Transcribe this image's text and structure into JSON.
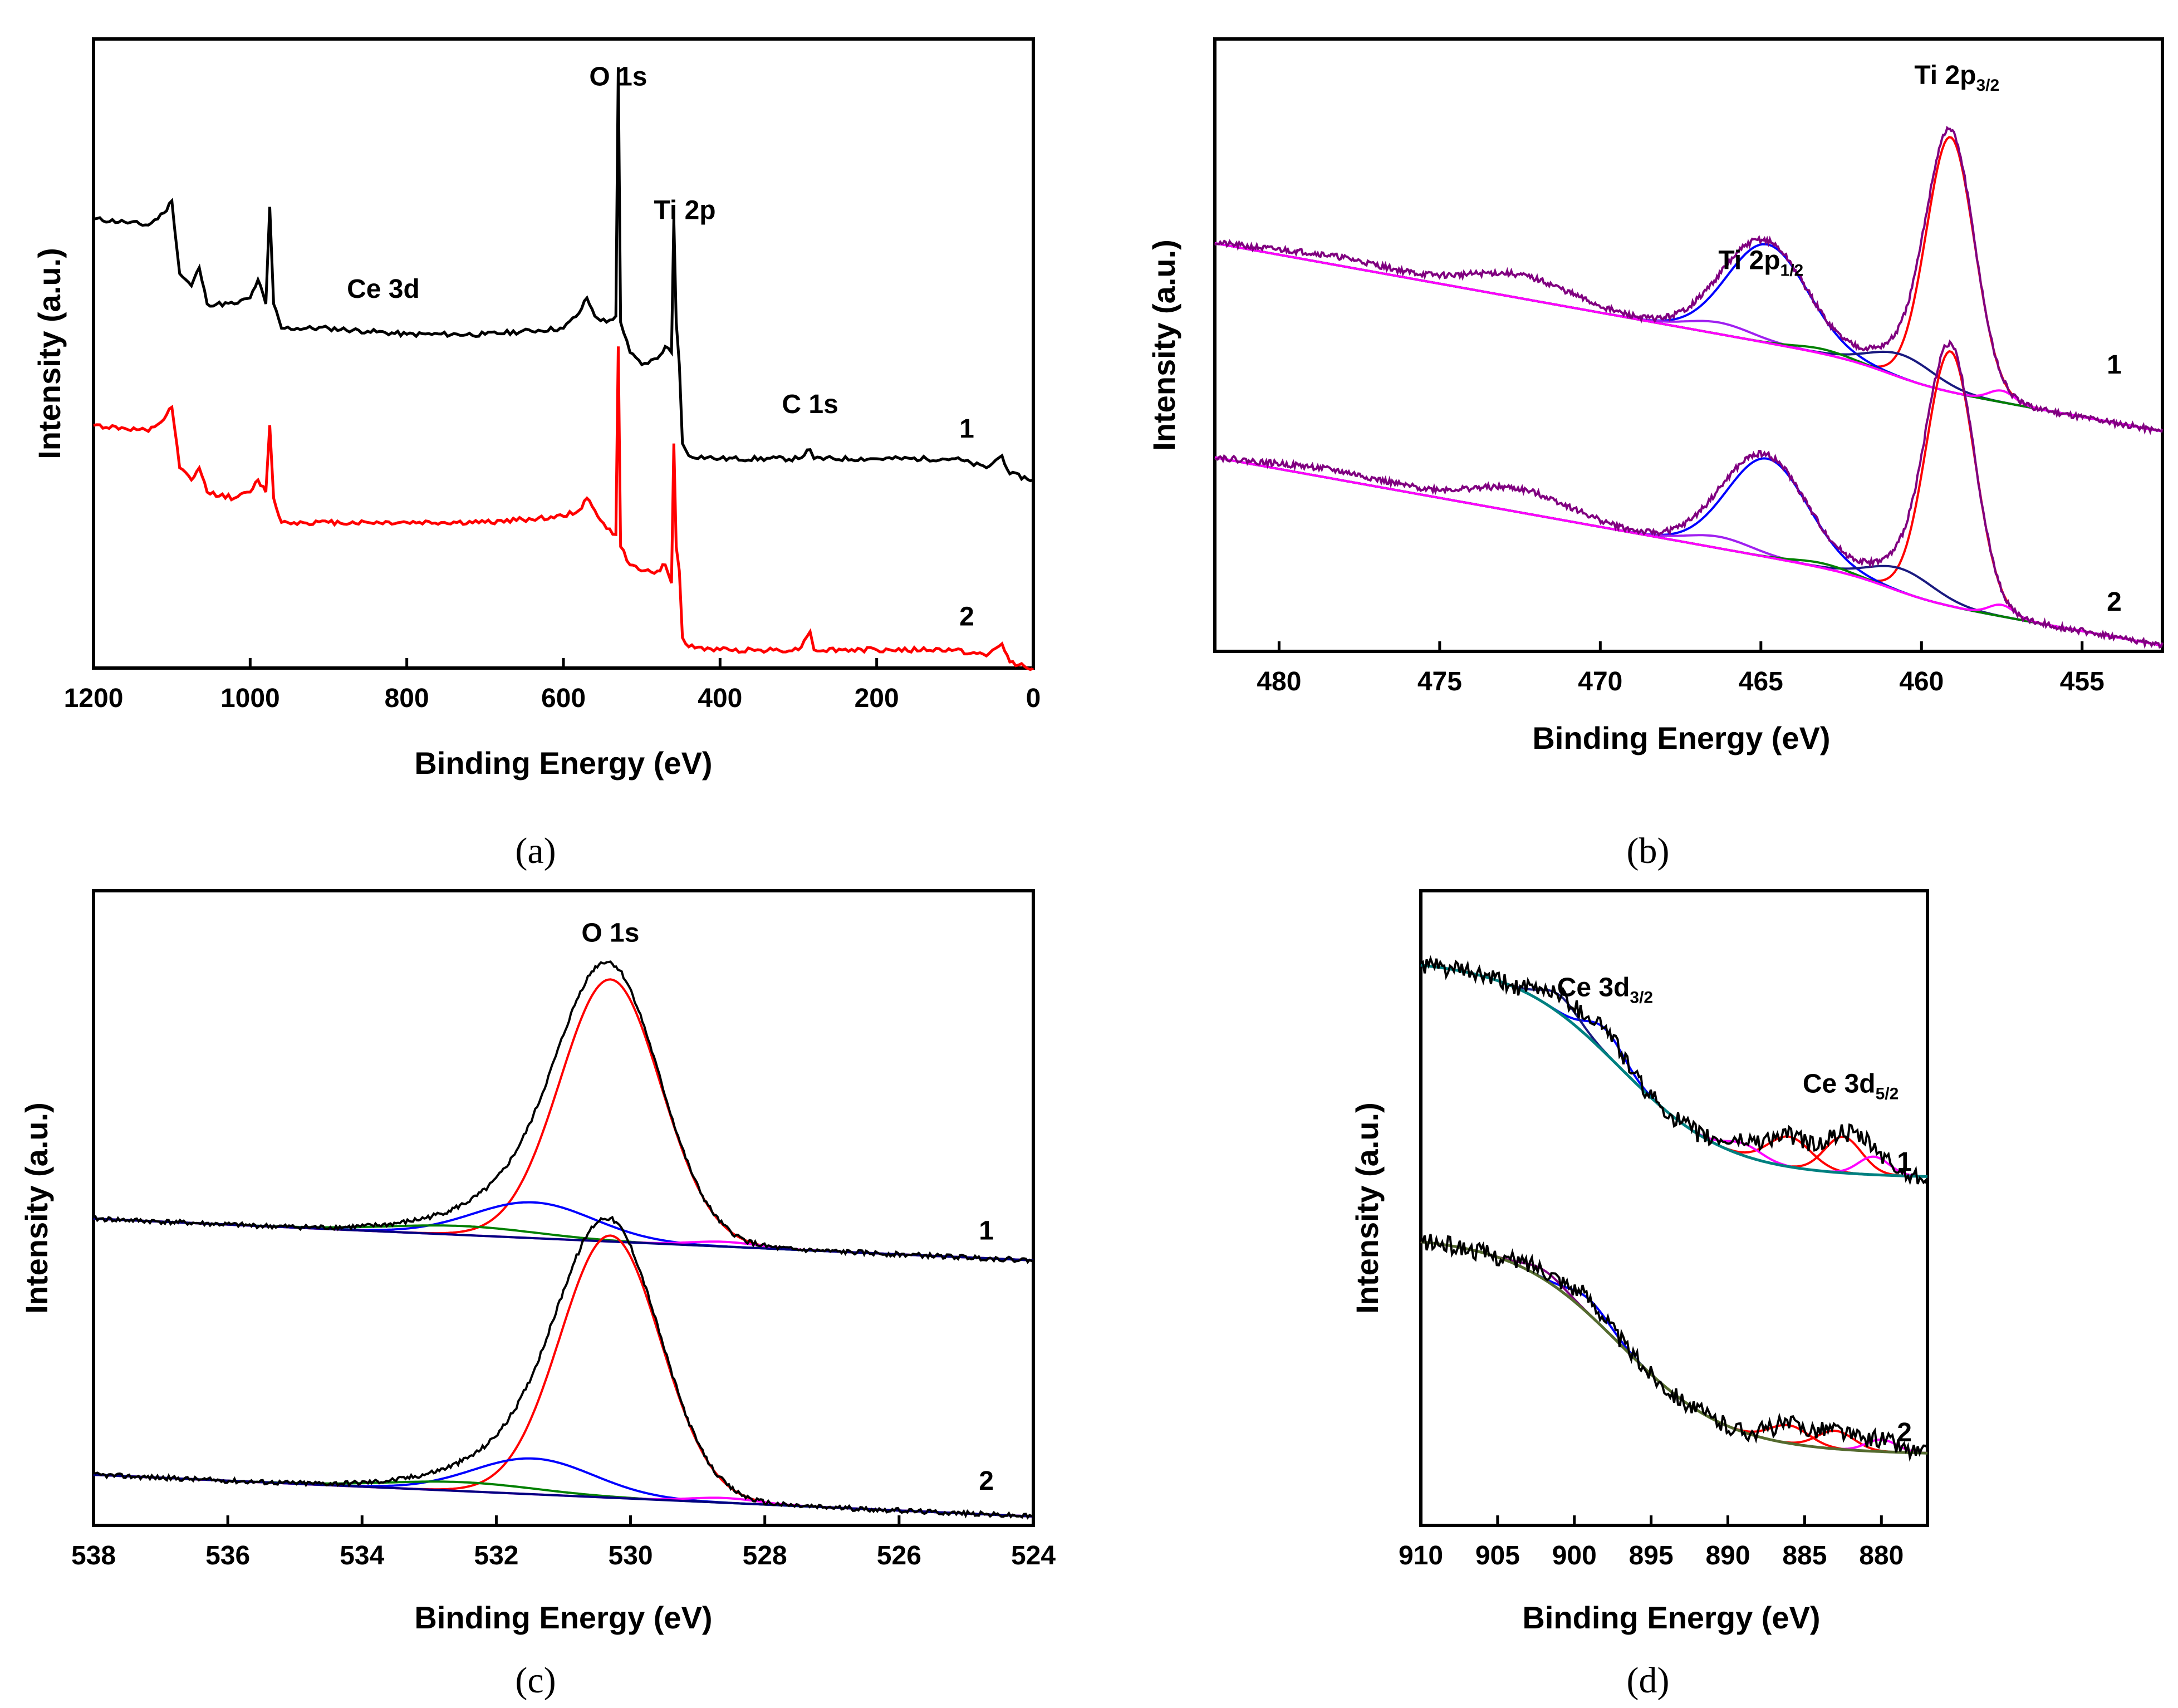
{
  "chart_data": [
    {
      "id": "a",
      "type": "line",
      "caption": "(a)",
      "xlabel": "Binding Energy (eV)",
      "ylabel": "Intensity (a.u.)",
      "xlim": [
        1200,
        0
      ],
      "ylim": [
        0,
        1
      ],
      "x_ticks": [
        1200,
        1000,
        800,
        600,
        400,
        200,
        0
      ],
      "annotations": [
        {
          "text": "O 1s",
          "x": 530,
          "y": 0.96
        },
        {
          "text": "Ti 2p",
          "x": 445,
          "y": 0.74
        },
        {
          "text": "Ce 3d",
          "x": 830,
          "y": 0.61
        },
        {
          "text": "C 1s",
          "x": 285,
          "y": 0.42
        }
      ],
      "curve_labels": [
        {
          "text": "1",
          "x": 85,
          "y": 0.38
        },
        {
          "text": "2",
          "x": 85,
          "y": 0.07
        }
      ],
      "series": [
        {
          "name": "1",
          "color": "#000000",
          "baseline": 0.36,
          "points": [
            [
              1200,
              0.74
            ],
            [
              1160,
              0.735
            ],
            [
              1130,
              0.73
            ],
            [
              1110,
              0.75
            ],
            [
              1100,
              0.77
            ],
            [
              1090,
              0.65
            ],
            [
              1075,
              0.63
            ],
            [
              1065,
              0.66
            ],
            [
              1055,
              0.6
            ],
            [
              1020,
              0.6
            ],
            [
              1000,
              0.61
            ],
            [
              990,
              0.64
            ],
            [
              980,
              0.6
            ],
            [
              975,
              0.76
            ],
            [
              970,
              0.6
            ],
            [
              960,
              0.56
            ],
            [
              900,
              0.56
            ],
            [
              850,
              0.555
            ],
            [
              800,
              0.55
            ],
            [
              700,
              0.55
            ],
            [
              600,
              0.56
            ],
            [
              580,
              0.585
            ],
            [
              570,
              0.61
            ],
            [
              560,
              0.58
            ],
            [
              545,
              0.57
            ],
            [
              533,
              0.58
            ],
            [
              530,
              0.99
            ],
            [
              527,
              0.57
            ],
            [
              515,
              0.52
            ],
            [
              500,
              0.5
            ],
            [
              480,
              0.51
            ],
            [
              470,
              0.53
            ],
            [
              462,
              0.52
            ],
            [
              459,
              0.74
            ],
            [
              456,
              0.57
            ],
            [
              452,
              0.5
            ],
            [
              448,
              0.37
            ],
            [
              440,
              0.35
            ],
            [
              400,
              0.345
            ],
            [
              300,
              0.345
            ],
            [
              285,
              0.36
            ],
            [
              280,
              0.345
            ],
            [
              200,
              0.345
            ],
            [
              100,
              0.345
            ],
            [
              60,
              0.33
            ],
            [
              40,
              0.35
            ],
            [
              30,
              0.32
            ],
            [
              0,
              0.31
            ]
          ]
        },
        {
          "name": "2",
          "color": "#ff0000",
          "baseline": 0.05,
          "points": [
            [
              1200,
              0.4
            ],
            [
              1160,
              0.395
            ],
            [
              1130,
              0.39
            ],
            [
              1110,
              0.41
            ],
            [
              1100,
              0.43
            ],
            [
              1090,
              0.33
            ],
            [
              1075,
              0.31
            ],
            [
              1065,
              0.33
            ],
            [
              1055,
              0.29
            ],
            [
              1020,
              0.28
            ],
            [
              1000,
              0.29
            ],
            [
              990,
              0.31
            ],
            [
              980,
              0.29
            ],
            [
              975,
              0.4
            ],
            [
              970,
              0.28
            ],
            [
              960,
              0.24
            ],
            [
              900,
              0.24
            ],
            [
              850,
              0.24
            ],
            [
              800,
              0.24
            ],
            [
              700,
              0.24
            ],
            [
              600,
              0.25
            ],
            [
              580,
              0.26
            ],
            [
              570,
              0.28
            ],
            [
              560,
              0.26
            ],
            [
              545,
              0.23
            ],
            [
              533,
              0.22
            ],
            [
              530,
              0.53
            ],
            [
              527,
              0.2
            ],
            [
              515,
              0.17
            ],
            [
              500,
              0.16
            ],
            [
              480,
              0.16
            ],
            [
              470,
              0.17
            ],
            [
              462,
              0.14
            ],
            [
              459,
              0.37
            ],
            [
              456,
              0.2
            ],
            [
              452,
              0.16
            ],
            [
              448,
              0.05
            ],
            [
              440,
              0.035
            ],
            [
              400,
              0.03
            ],
            [
              300,
              0.03
            ],
            [
              285,
              0.06
            ],
            [
              280,
              0.03
            ],
            [
              200,
              0.03
            ],
            [
              100,
              0.03
            ],
            [
              60,
              0.02
            ],
            [
              40,
              0.04
            ],
            [
              30,
              0.01
            ],
            [
              0,
              0.0
            ]
          ]
        }
      ]
    },
    {
      "id": "b",
      "type": "line",
      "caption": "(b)",
      "xlabel": "Binding Energy (eV)",
      "ylabel": "Intensity (a.u.)",
      "xlim": [
        482,
        452.5
      ],
      "ylim": [
        0,
        1
      ],
      "x_ticks": [
        480,
        475,
        470,
        465,
        460,
        455
      ],
      "annotations": [
        {
          "text": "Ti 2p",
          "sub": "3/2",
          "x": 458.9,
          "y": 0.98
        },
        {
          "text": "Ti 2p",
          "sub": "1/2",
          "x": 465,
          "y": 0.66
        }
      ],
      "curve_labels": [
        {
          "text": "1",
          "x": 454,
          "y": 0.48
        },
        {
          "text": "2",
          "x": 454,
          "y": 0.07
        }
      ],
      "peaks_eV": {
        "Ti 2p3/2": 459.1,
        "Ti 2p1/2": 464.8
      },
      "series": [
        {
          "name": "1",
          "color": "#000000",
          "baseline": 0.42
        },
        {
          "name": "2",
          "color": "#000000",
          "baseline": 0.05
        }
      ]
    },
    {
      "id": "c",
      "type": "line",
      "caption": "(c)",
      "xlabel": "Binding Energy (eV)",
      "ylabel": "Intensity (a.u.)",
      "xlim": [
        538,
        524
      ],
      "ylim": [
        0,
        1
      ],
      "x_ticks": [
        538,
        536,
        534,
        532,
        530,
        528,
        526,
        524
      ],
      "annotations": [
        {
          "text": "O 1s",
          "x": 530.3,
          "y": 0.98
        }
      ],
      "curve_labels": [
        {
          "text": "1",
          "x": 524.7,
          "y": 0.48
        },
        {
          "text": "2",
          "x": 524.7,
          "y": 0.06
        }
      ],
      "peaks_eV": {
        "lattice O": 530.3,
        "surface OH": 531.4
      },
      "series": [
        {
          "name": "1",
          "color": "#000000",
          "baseline": 0.46
        },
        {
          "name": "2",
          "color": "#000000",
          "baseline": 0.03
        }
      ]
    },
    {
      "id": "d",
      "type": "line",
      "caption": "(d)",
      "xlabel": "Binding Energy (eV)",
      "ylabel": "Intensity (a.u.)",
      "xlim": [
        910,
        877
      ],
      "ylim": [
        0,
        1
      ],
      "x_ticks": [
        910,
        905,
        900,
        895,
        890,
        885,
        880
      ],
      "annotations": [
        {
          "text": "Ce 3d",
          "sub": "3/2",
          "x": 898,
          "y": 0.88
        },
        {
          "text": "Ce 3d",
          "sub": "5/2",
          "x": 882,
          "y": 0.72
        }
      ],
      "curve_labels": [
        {
          "text": "1",
          "x": 878.5,
          "y": 0.59
        },
        {
          "text": "2",
          "x": 878.5,
          "y": 0.14
        }
      ],
      "series": [
        {
          "name": "1",
          "color": "#000000"
        },
        {
          "name": "2",
          "color": "#000000"
        }
      ]
    }
  ]
}
